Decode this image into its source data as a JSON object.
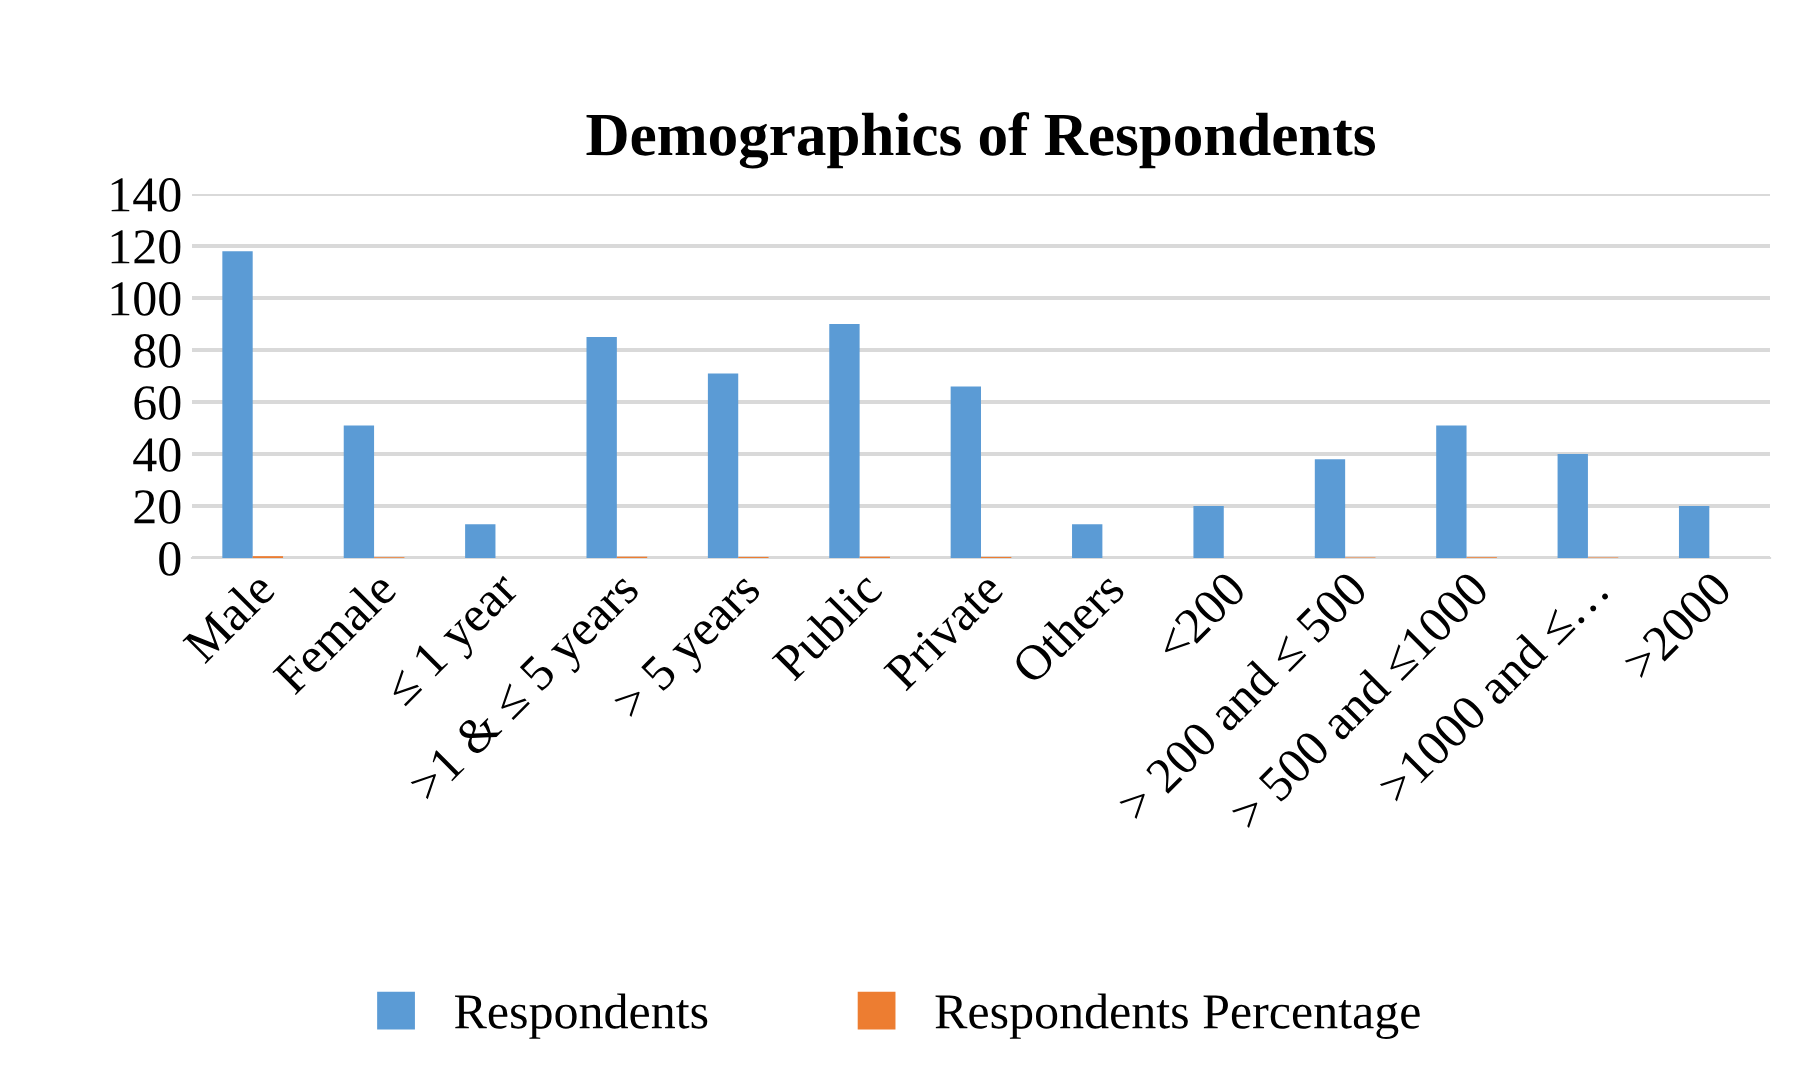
{
  "chart_data": {
    "type": "bar",
    "title": "Demographics of Respondents",
    "categories": [
      "Male",
      "Female",
      "≤ 1 year",
      ">1 & ≤ 5 years",
      "> 5 years",
      "Public",
      "Private",
      "Others",
      "<200",
      "> 200 and ≤ 500",
      "> 500 and ≤1000",
      ">1000 and ≤…",
      ">2000"
    ],
    "series": [
      {
        "name": "Respondents",
        "color": "#5b9bd5",
        "values": [
          118,
          51,
          13,
          85,
          71,
          90,
          66,
          13,
          20,
          38,
          51,
          40,
          20
        ]
      },
      {
        "name": "Respondents Percentage",
        "color": "#ed7d31",
        "values": [
          0.7,
          0.3,
          null,
          0.5,
          0.4,
          0.5,
          0.4,
          null,
          null,
          0.2,
          0.3,
          0.2,
          null
        ]
      }
    ],
    "ylim": [
      0,
      140
    ],
    "yticks": [
      0,
      20,
      40,
      60,
      80,
      100,
      120,
      140
    ],
    "grid": "y",
    "legend": "bottom"
  }
}
